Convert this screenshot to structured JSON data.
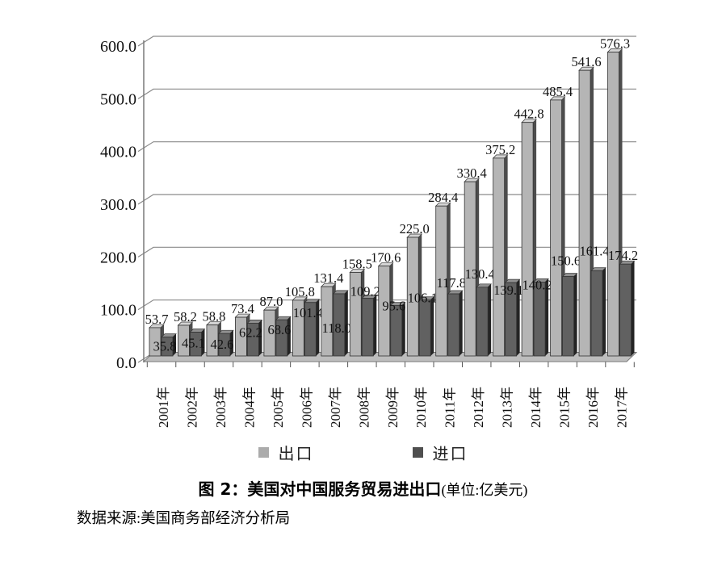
{
  "figure": {
    "caption_title": "图 2：美国对中国服务贸易进出口",
    "caption_unit": "(单位:亿美元)",
    "source": "数据来源:美国商务部经济分析局"
  },
  "legend": {
    "items": [
      {
        "label": "出口",
        "color": "#ababab"
      },
      {
        "label": "进口",
        "color": "#4f4f4f"
      }
    ]
  },
  "chart_data": {
    "type": "bar",
    "style": "3d-clustered-column",
    "title": "图 2：美国对中国服务贸易进出口",
    "unit_note": "(单位:亿美元)",
    "source": "数据来源:美国商务部经济分析局",
    "categories": [
      "2001年",
      "2002年",
      "2003年",
      "2004年",
      "2005年",
      "2006年",
      "2007年",
      "2008年",
      "2009年",
      "2010年",
      "2011年",
      "2012年",
      "2013年",
      "2014年",
      "2015年",
      "2016年",
      "2017年"
    ],
    "series": [
      {
        "name": "出口",
        "color": "#b5b5b5",
        "side_color": "#4d4d4d",
        "top_color": "#d4d4d4",
        "values": [
          53.7,
          58.2,
          58.8,
          73.4,
          87.0,
          105.8,
          131.4,
          158.5,
          170.6,
          225.0,
          284.4,
          330.4,
          375.2,
          442.8,
          485.4,
          541.6,
          576.3
        ],
        "labels": [
          "53.7",
          "58.2",
          "58.8",
          "73.4",
          "87.0",
          "105.8",
          "131.4",
          "158.5",
          "170.6",
          "225.0",
          "284.4",
          "330.4",
          "375.2",
          "442.8",
          "485.4",
          "541.6",
          "576.3"
        ]
      },
      {
        "name": "进口",
        "color": "#616161",
        "side_color": "#242424",
        "top_color": "#909090",
        "values": [
          35.8,
          45.1,
          42.6,
          62.2,
          68.6,
          101.4,
          118.0,
          109.2,
          95.6,
          106.1,
          117.8,
          130.4,
          139.1,
          140.2,
          150.6,
          161.4,
          174.2
        ],
        "labels": [
          "35.8",
          "45.1",
          "42.6",
          "62.2",
          "68.6",
          "101.4",
          "118.0",
          "109.2",
          "95.6",
          "106.1",
          "117.8",
          "130.4",
          "139.1",
          "140.2",
          "150.6",
          "161.4",
          "174.2"
        ]
      }
    ],
    "ylim": [
      0,
      600
    ],
    "ytick_step": 100,
    "ytick_labels": [
      "0.0",
      "100.0",
      "200.0",
      "300.0",
      "400.0",
      "500.0",
      "600.0"
    ],
    "grid": true,
    "legend_position": "bottom",
    "layout_hints": {
      "import_label_dy": [
        17,
        19,
        19,
        17,
        18,
        18,
        48,
        -3,
        6,
        3,
        -8,
        -11,
        15,
        9,
        -14,
        -19,
        -5
      ]
    }
  }
}
